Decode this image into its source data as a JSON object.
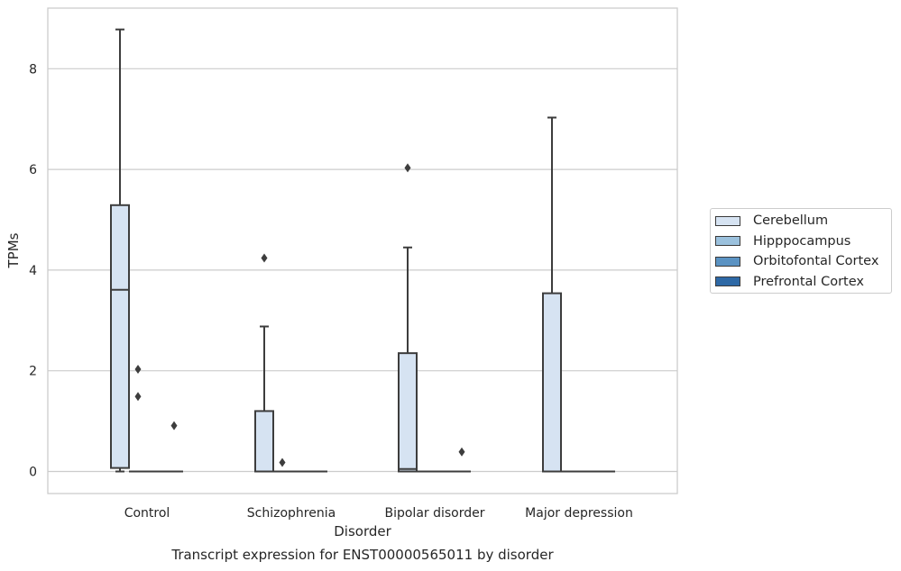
{
  "chart_data": {
    "type": "box",
    "xlabel": "Disorder",
    "ylabel": "TPMs",
    "caption": "Transcript expression for ENST00000565011 by disorder",
    "categories": [
      "Control",
      "Schizophrenia",
      "Bipolar disorder",
      "Major depression"
    ],
    "ylim": [
      -0.42,
      9.25
    ],
    "yticks": [
      0,
      2,
      4,
      6,
      8
    ],
    "grid": "horizontal",
    "legend_position": "right",
    "series": [
      {
        "name": "Cerebellum",
        "color": "#d6e3f2",
        "boxes": [
          {
            "q1": 0.07,
            "median": 3.61,
            "q3": 5.29,
            "whisker_low": 0.0,
            "whisker_high": 8.78,
            "outliers": []
          },
          {
            "q1": 0.0,
            "median": 0.0,
            "q3": 1.2,
            "whisker_low": 0.0,
            "whisker_high": 2.88,
            "outliers": [
              4.24
            ]
          },
          {
            "q1": 0.0,
            "median": 0.05,
            "q3": 2.35,
            "whisker_low": 0.0,
            "whisker_high": 4.45,
            "outliers": [
              6.03
            ]
          },
          {
            "q1": 0.0,
            "median": 0.0,
            "q3": 3.54,
            "whisker_low": 0.0,
            "whisker_high": 7.03,
            "outliers": []
          }
        ]
      },
      {
        "name": "Hipppocampus",
        "color": "#9bc1dd",
        "boxes": [
          {
            "q1": 0,
            "median": 0,
            "q3": 0,
            "whisker_low": 0,
            "whisker_high": 0,
            "outliers": [
              2.03,
              1.49
            ]
          },
          {
            "q1": 0,
            "median": 0,
            "q3": 0,
            "whisker_low": 0,
            "whisker_high": 0,
            "outliers": [
              0.18
            ]
          },
          {
            "q1": 0,
            "median": 0,
            "q3": 0,
            "whisker_low": 0,
            "whisker_high": 0,
            "outliers": []
          },
          {
            "q1": 0,
            "median": 0,
            "q3": 0,
            "whisker_low": 0,
            "whisker_high": 0,
            "outliers": []
          }
        ]
      },
      {
        "name": "Orbitofontal Cortex",
        "color": "#5b93c3",
        "boxes": [
          {
            "q1": 0,
            "median": 0,
            "q3": 0,
            "whisker_low": 0,
            "whisker_high": 0,
            "outliers": []
          },
          {
            "q1": 0,
            "median": 0,
            "q3": 0,
            "whisker_low": 0,
            "whisker_high": 0,
            "outliers": []
          },
          {
            "q1": 0,
            "median": 0,
            "q3": 0,
            "whisker_low": 0,
            "whisker_high": 0,
            "outliers": []
          },
          {
            "q1": 0,
            "median": 0,
            "q3": 0,
            "whisker_low": 0,
            "whisker_high": 0,
            "outliers": []
          }
        ]
      },
      {
        "name": "Prefrontal Cortex",
        "color": "#2e69a6",
        "boxes": [
          {
            "q1": 0,
            "median": 0,
            "q3": 0,
            "whisker_low": 0,
            "whisker_high": 0,
            "outliers": [
              0.91
            ]
          },
          {
            "q1": 0,
            "median": 0,
            "q3": 0,
            "whisker_low": 0,
            "whisker_high": 0,
            "outliers": []
          },
          {
            "q1": 0,
            "median": 0,
            "q3": 0,
            "whisker_low": 0,
            "whisker_high": 0,
            "outliers": [
              0.39
            ]
          },
          {
            "q1": 0,
            "median": 0,
            "q3": 0,
            "whisker_low": 0,
            "whisker_high": 0,
            "outliers": []
          }
        ]
      }
    ]
  }
}
